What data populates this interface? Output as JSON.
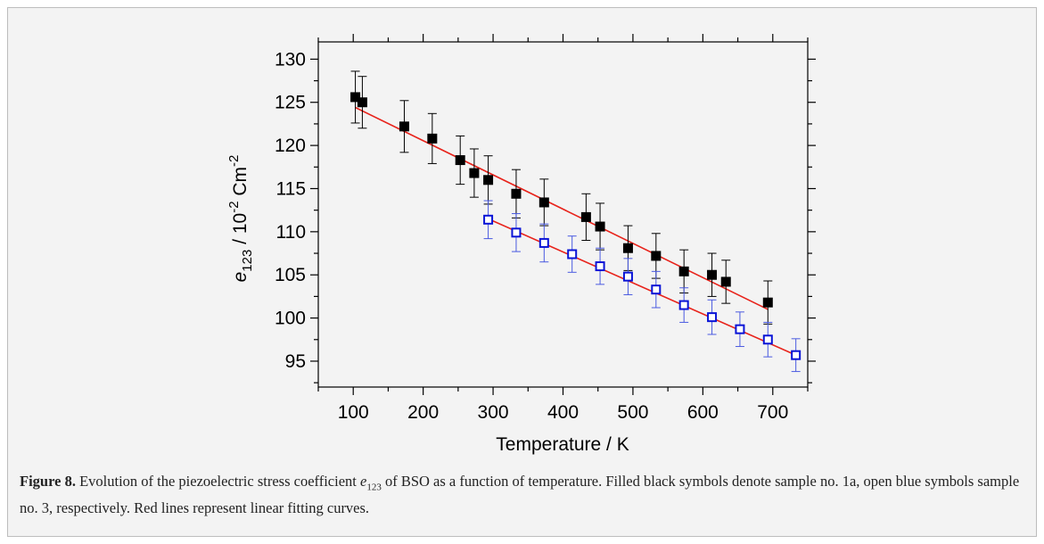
{
  "caption": {
    "label": "Figure 8.",
    "text_1": " Evolution of the piezoelectric stress coefficient ",
    "symbol": "e",
    "symbol_sub": "123",
    "text_2": " of BSO as a function of temperature. Filled black symbols denote sample no. 1a, open blue symbols sample no. 3, respectively. Red lines represent linear fitting curves."
  },
  "chart_data": {
    "type": "scatter",
    "xlabel": "Temperature / K",
    "ylabel": {
      "symbol": "e",
      "sub": "123",
      "mid": " / 10",
      "sup1": "-2",
      "unit": " Cm",
      "sup2": "-2"
    },
    "xlim": [
      50,
      750
    ],
    "ylim": [
      92,
      132
    ],
    "xticks": [
      100,
      200,
      300,
      400,
      500,
      600,
      700
    ],
    "yticks": [
      95,
      100,
      105,
      110,
      115,
      120,
      125,
      130
    ],
    "grid": false,
    "legend": "none",
    "series": [
      {
        "marker": "filled-square",
        "color": "#000000",
        "x": [
          103,
          113,
          173,
          213,
          253,
          273,
          293,
          333,
          373,
          433,
          453,
          493,
          533,
          573,
          613,
          633,
          693
        ],
        "y": [
          125.6,
          125.0,
          122.2,
          120.8,
          118.3,
          116.8,
          116.0,
          114.4,
          113.4,
          111.7,
          110.6,
          108.1,
          107.2,
          105.4,
          105.0,
          104.2,
          101.8
        ],
        "err": [
          3.0,
          3.0,
          3.0,
          2.9,
          2.8,
          2.8,
          2.8,
          2.8,
          2.7,
          2.7,
          2.7,
          2.6,
          2.6,
          2.5,
          2.5,
          2.5,
          2.5
        ],
        "fit": {
          "color": "#e8231b",
          "x": [
            103,
            693
          ],
          "y": [
            124.4,
            101.0
          ]
        }
      },
      {
        "marker": "open-square",
        "color": "#0a14d6",
        "err_color": "#4a5ae0",
        "x": [
          293,
          333,
          373,
          413,
          453,
          493,
          533,
          573,
          613,
          653,
          693,
          733
        ],
        "y": [
          111.4,
          109.9,
          108.7,
          107.4,
          106.0,
          104.8,
          103.3,
          101.5,
          100.1,
          98.7,
          97.5,
          95.7
        ],
        "err": [
          2.2,
          2.2,
          2.2,
          2.1,
          2.1,
          2.1,
          2.1,
          2.0,
          2.0,
          2.0,
          2.0,
          1.9
        ],
        "fit": {
          "color": "#e8231b",
          "x": [
            293,
            733
          ],
          "y": [
            111.5,
            95.7
          ]
        }
      }
    ]
  }
}
